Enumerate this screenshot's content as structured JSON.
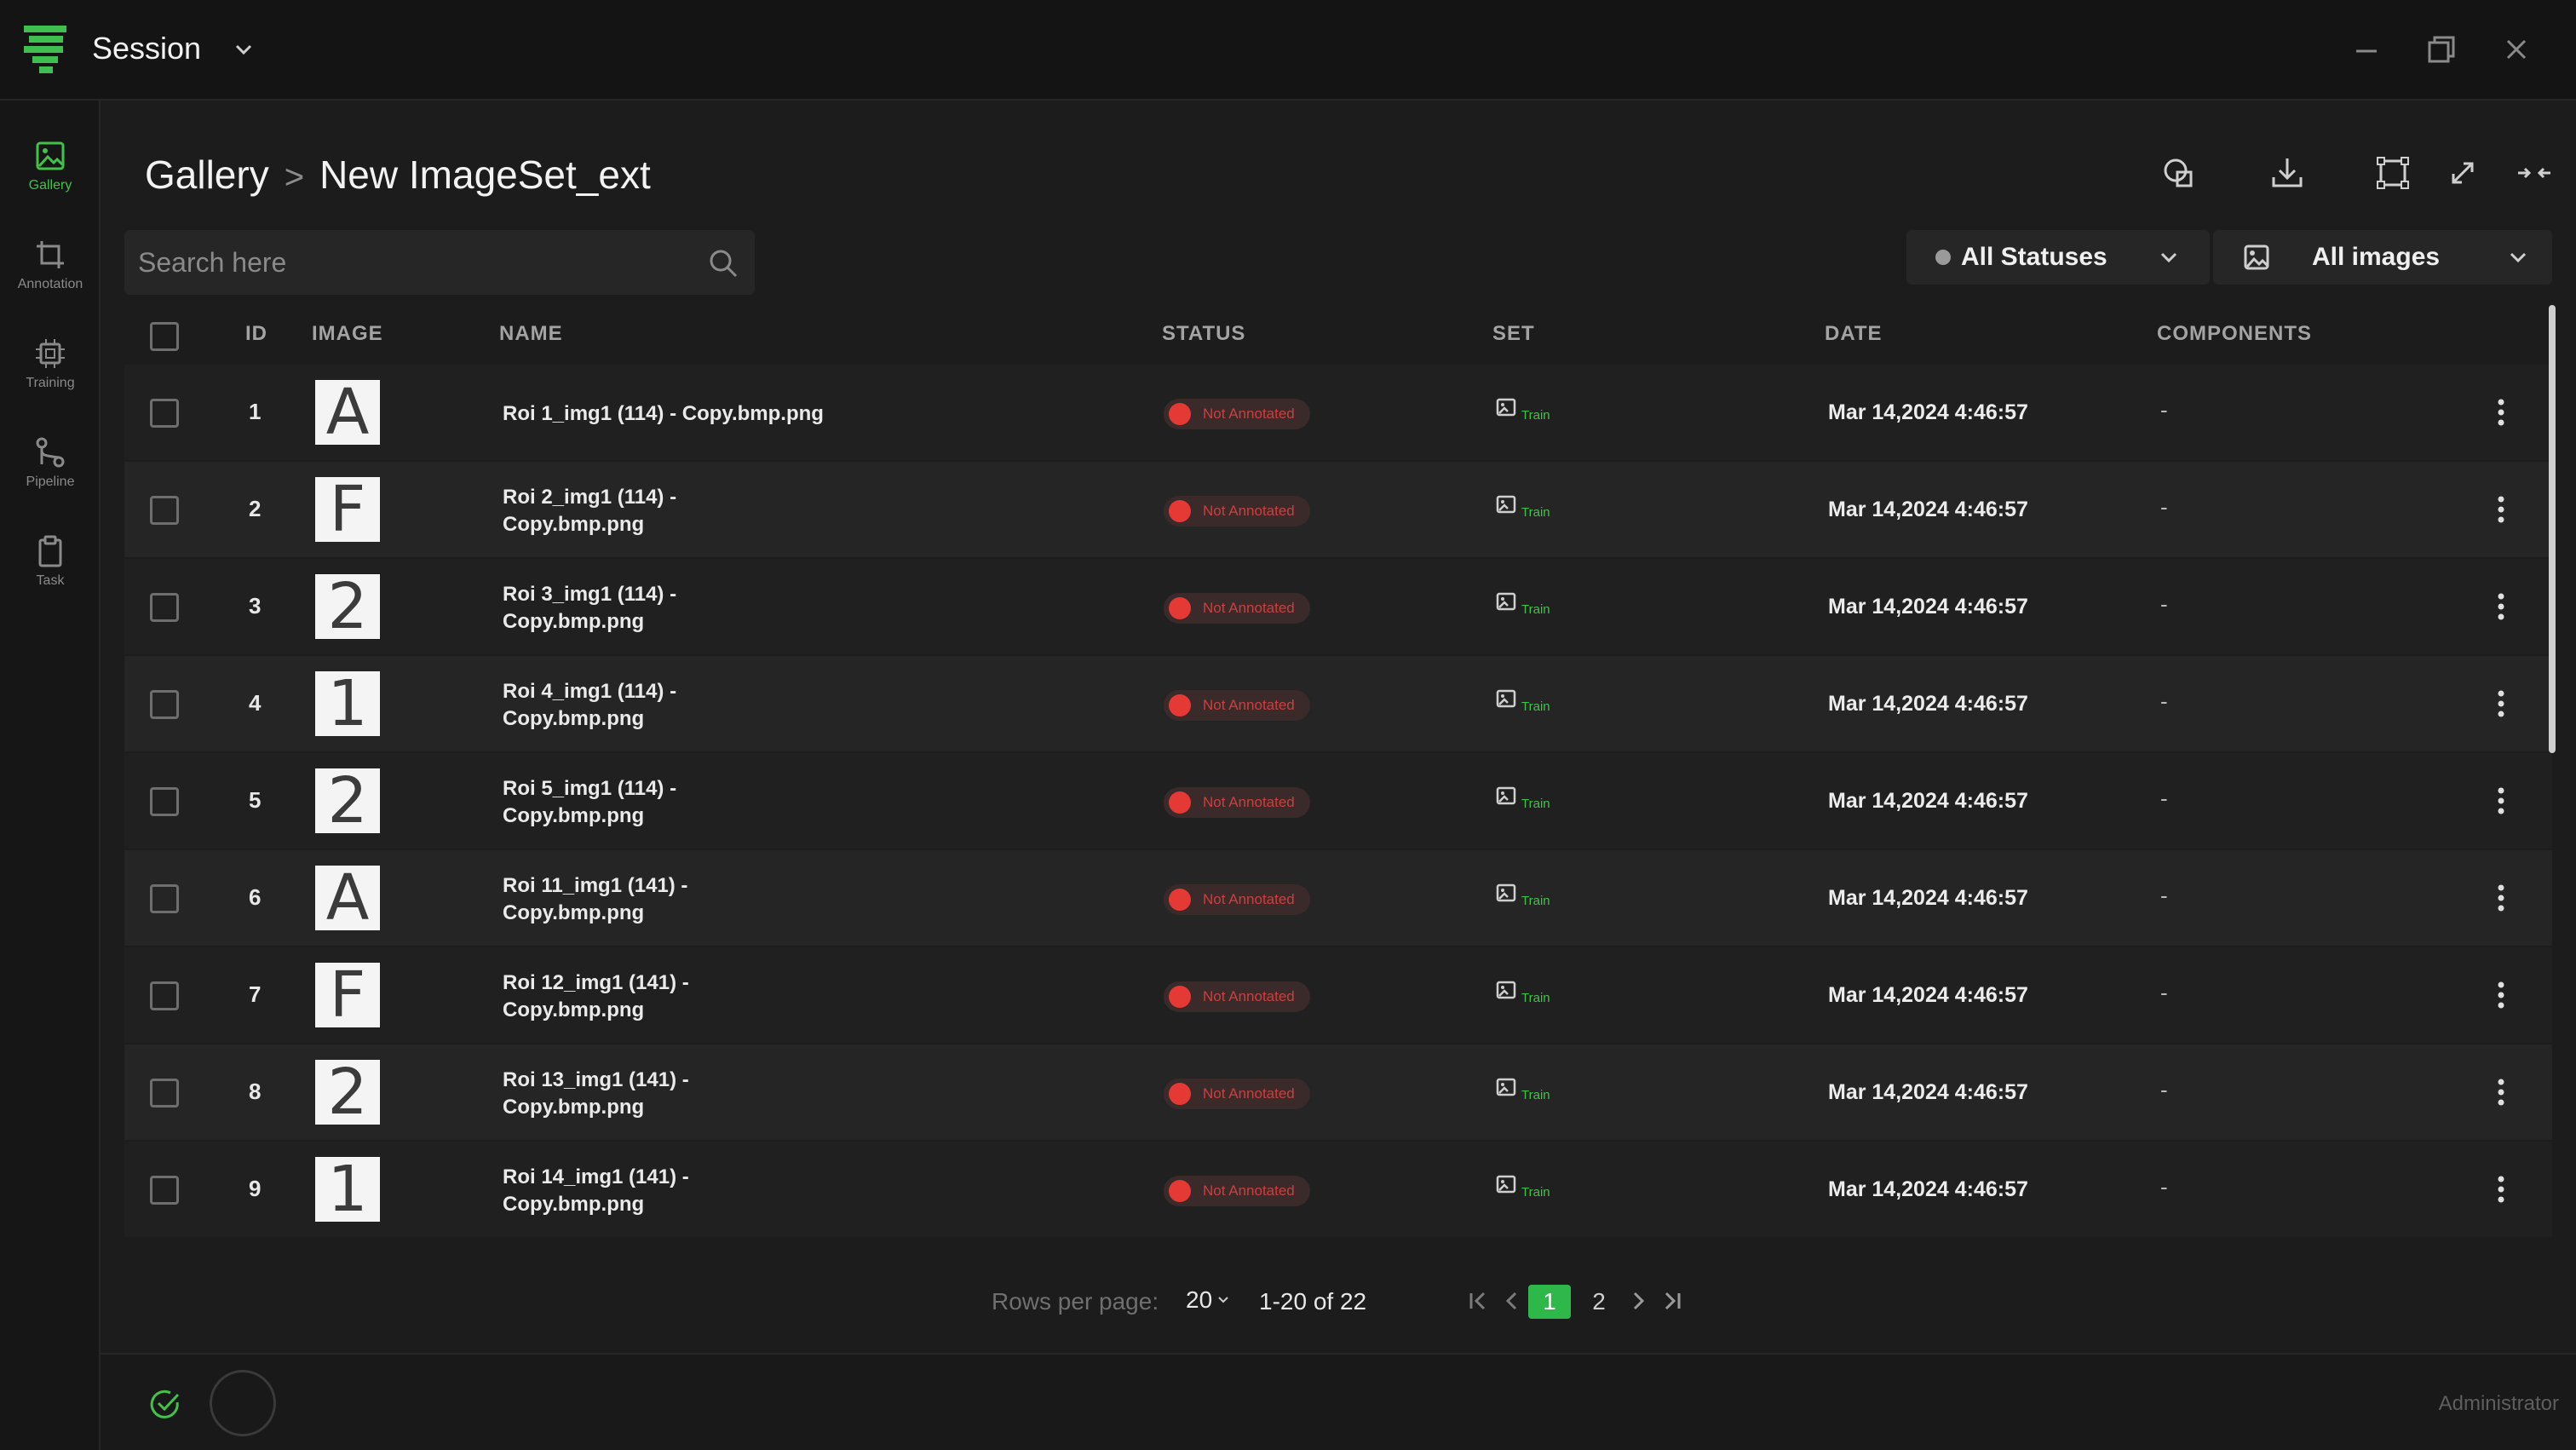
{
  "app": {
    "title": "Session"
  },
  "sidebar": {
    "items": [
      {
        "label": "Gallery",
        "icon": "image-icon",
        "active": true
      },
      {
        "label": "Annotation",
        "icon": "crop-icon"
      },
      {
        "label": "Training",
        "icon": "chip-icon"
      },
      {
        "label": "Pipeline",
        "icon": "pipeline-icon"
      },
      {
        "label": "Task",
        "icon": "clipboard-icon"
      }
    ]
  },
  "breadcrumb": {
    "root": "Gallery",
    "separator": ">",
    "current": "New ImageSet_ext"
  },
  "search": {
    "placeholder": "Search here",
    "value": ""
  },
  "filters": {
    "status": "All Statuses",
    "images": "All images"
  },
  "table": {
    "headers": {
      "id": "ID",
      "image": "IMAGE",
      "name": "NAME",
      "status": "STATUS",
      "set": "SET",
      "date": "DATE",
      "components": "COMPONENTS"
    },
    "rows": [
      {
        "id": "1",
        "thumb": "A",
        "name_line1": "Roi 1_img1 (114) - Copy.bmp.png",
        "name_line2": "",
        "status": "Not Annotated",
        "set": "Train",
        "date": "Mar 14,2024 4:46:57",
        "components": "-"
      },
      {
        "id": "2",
        "thumb": "F",
        "name_line1": "Roi 2_img1 (114) -",
        "name_line2": "Copy.bmp.png",
        "status": "Not Annotated",
        "set": "Train",
        "date": "Mar 14,2024 4:46:57",
        "components": "-"
      },
      {
        "id": "3",
        "thumb": "2",
        "name_line1": "Roi 3_img1 (114) -",
        "name_line2": "Copy.bmp.png",
        "status": "Not Annotated",
        "set": "Train",
        "date": "Mar 14,2024 4:46:57",
        "components": "-"
      },
      {
        "id": "4",
        "thumb": "1",
        "name_line1": "Roi 4_img1 (114) -",
        "name_line2": "Copy.bmp.png",
        "status": "Not Annotated",
        "set": "Train",
        "date": "Mar 14,2024 4:46:57",
        "components": "-"
      },
      {
        "id": "5",
        "thumb": "2",
        "name_line1": "Roi 5_img1 (114) -",
        "name_line2": "Copy.bmp.png",
        "status": "Not Annotated",
        "set": "Train",
        "date": "Mar 14,2024 4:46:57",
        "components": "-"
      },
      {
        "id": "6",
        "thumb": "A",
        "name_line1": "Roi 11_img1 (141) -",
        "name_line2": "Copy.bmp.png",
        "status": "Not Annotated",
        "set": "Train",
        "date": "Mar 14,2024 4:46:57",
        "components": "-"
      },
      {
        "id": "7",
        "thumb": "F",
        "name_line1": "Roi 12_img1 (141) -",
        "name_line2": "Copy.bmp.png",
        "status": "Not Annotated",
        "set": "Train",
        "date": "Mar 14,2024 4:46:57",
        "components": "-"
      },
      {
        "id": "8",
        "thumb": "2",
        "name_line1": "Roi 13_img1 (141) -",
        "name_line2": "Copy.bmp.png",
        "status": "Not Annotated",
        "set": "Train",
        "date": "Mar 14,2024 4:46:57",
        "components": "-"
      },
      {
        "id": "9",
        "thumb": "1",
        "name_line1": "Roi 14_img1 (141) -",
        "name_line2": "Copy.bmp.png",
        "status": "Not Annotated",
        "set": "Train",
        "date": "Mar 14,2024 4:46:57",
        "components": "-"
      }
    ]
  },
  "pagination": {
    "rows_label": "Rows per page:",
    "rows_value": "20",
    "range": "1-20 of 22",
    "pages": [
      "1",
      "2"
    ],
    "current_page": "1"
  },
  "footer": {
    "user": "Administrator"
  },
  "colors": {
    "accent": "#43c24a",
    "status_red": "#e53935",
    "background": "#1c1c1c"
  }
}
